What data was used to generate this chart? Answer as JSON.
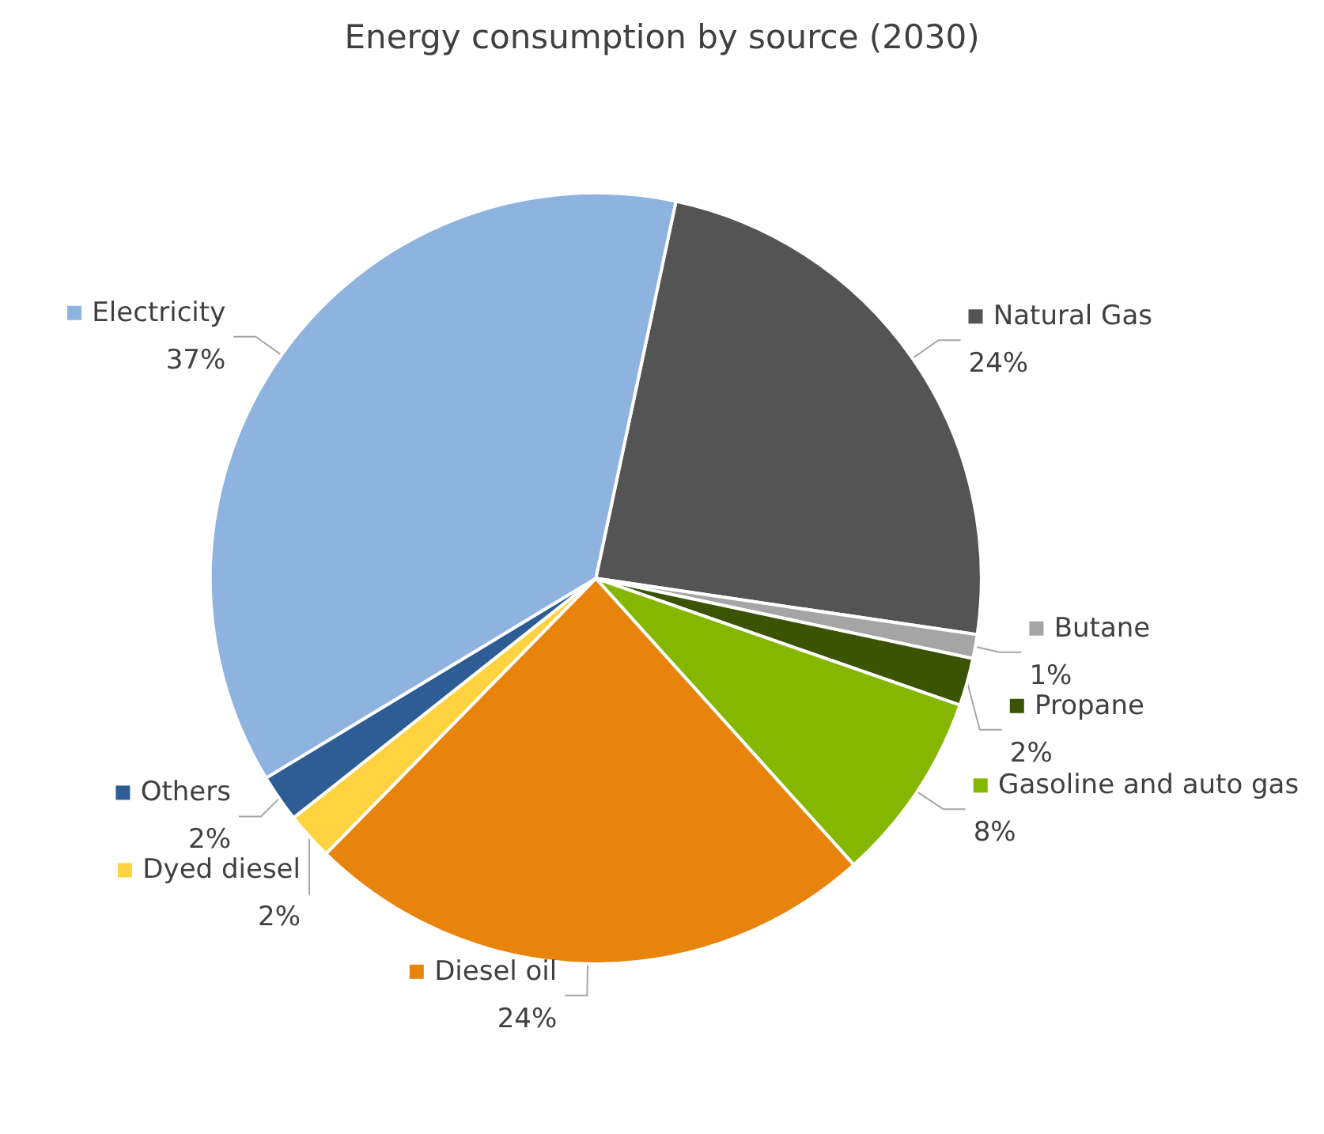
{
  "chart_data": {
    "type": "pie",
    "title": "Energy consumption by source (2030)",
    "categories": [
      "Natural Gas",
      "Butane",
      "Propane",
      "Gasoline and auto gas",
      "Diesel oil",
      "Dyed diesel",
      "Others",
      "Electricity"
    ],
    "values": [
      24,
      1,
      2,
      8,
      24,
      2,
      2,
      37
    ],
    "value_labels": [
      "24%",
      "1%",
      "2%",
      "8%",
      "24%",
      "2%",
      "2%",
      "37%"
    ],
    "colors": [
      "#545454",
      "#a5a5a5",
      "#3a5404",
      "#86b700",
      "#e8830b",
      "#ffd23f",
      "#2e5d96",
      "#8eb3de"
    ],
    "legend": "right"
  }
}
